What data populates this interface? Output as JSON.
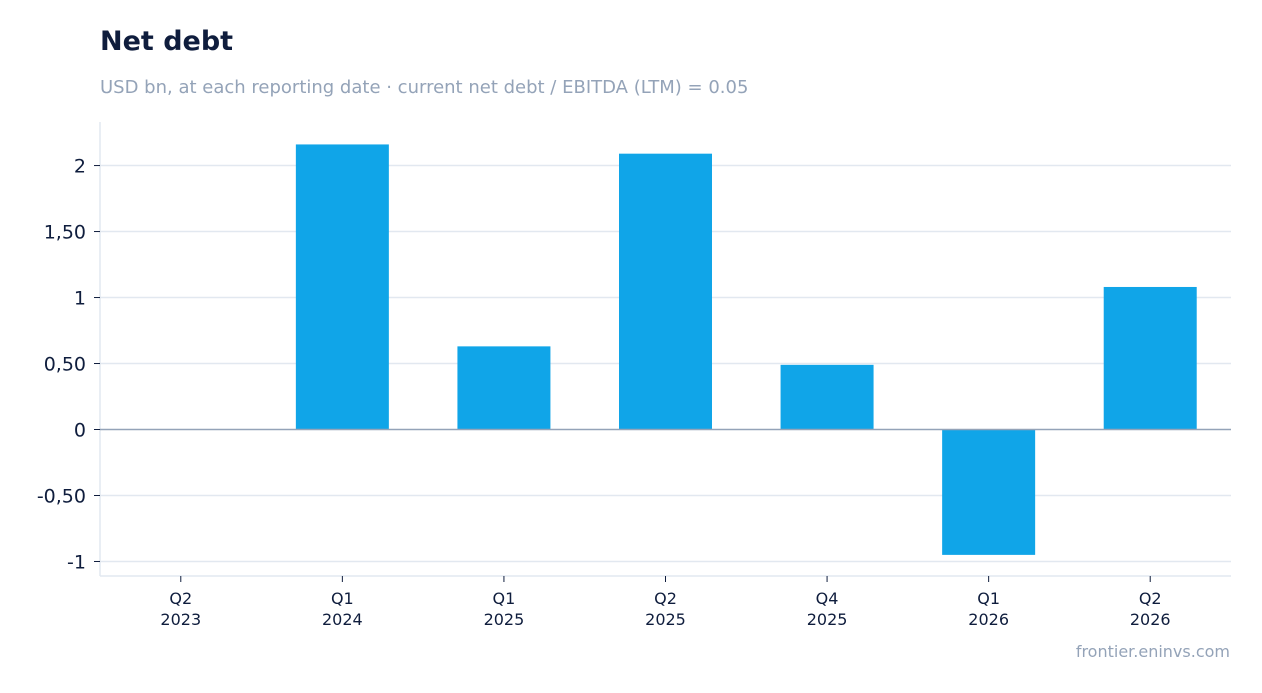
{
  "title": "Net debt",
  "subtitle": "USD bn, at each reporting date · current net debt / EBITDA (LTM) = 0.05",
  "source": "frontier.eninvs.com",
  "colors": {
    "bar": "#10a5e8",
    "grid": "#e2e8f0",
    "zero_line": "#94a3b8",
    "axis_text": "#0f1d3d"
  },
  "chart_data": {
    "type": "bar",
    "categories": [
      [
        "Q2",
        "2023"
      ],
      [
        "Q1",
        "2024"
      ],
      [
        "Q1",
        "2025"
      ],
      [
        "Q2",
        "2025"
      ],
      [
        "Q4",
        "2025"
      ],
      [
        "Q1",
        "2026"
      ],
      [
        "Q2",
        "2026"
      ]
    ],
    "values": [
      0,
      2.16,
      0.63,
      2.09,
      0.49,
      -0.95,
      1.08
    ],
    "ylim": [
      -1.11,
      2.33
    ],
    "yticks": [
      {
        "value": 2,
        "label": "2"
      },
      {
        "value": 1.5,
        "label": "1,50"
      },
      {
        "value": 1,
        "label": "1"
      },
      {
        "value": 0.5,
        "label": "0,50"
      },
      {
        "value": 0,
        "label": "0"
      },
      {
        "value": -0.5,
        "label": "-0,50"
      },
      {
        "value": -1,
        "label": "-1"
      }
    ],
    "grid": true
  }
}
